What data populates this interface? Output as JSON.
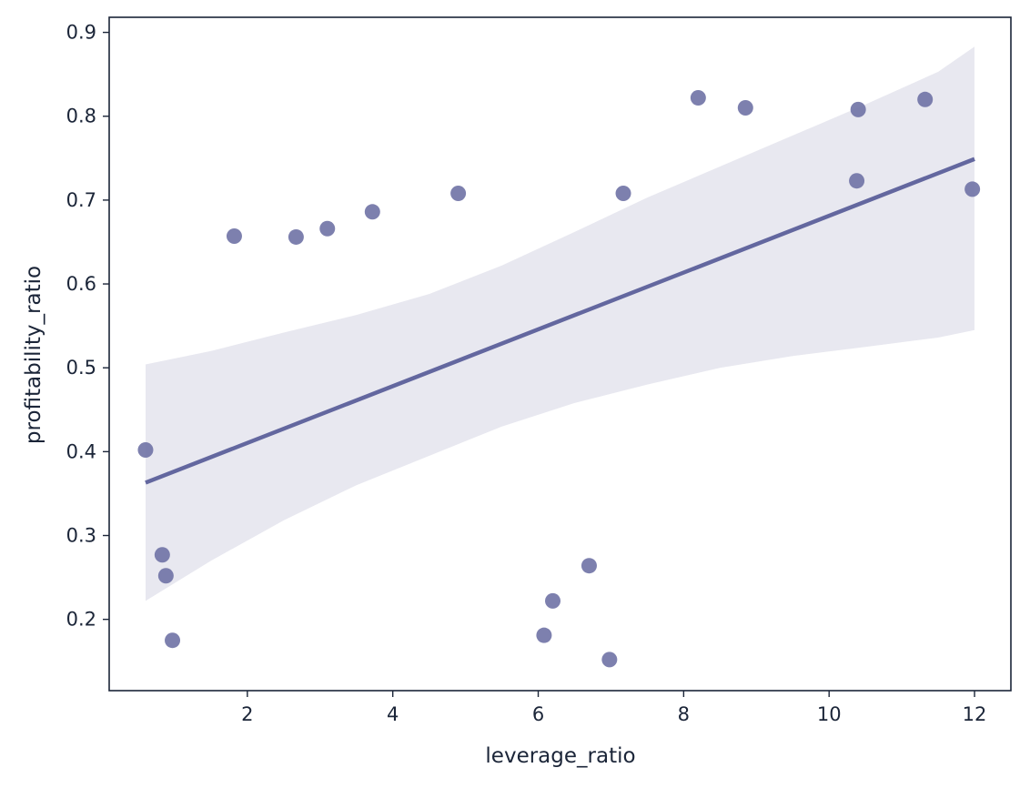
{
  "chart_data": {
    "type": "scatter",
    "title": "",
    "xlabel": "leverage_ratio",
    "ylabel": "profitability_ratio",
    "xlim": [
      0.1,
      12.5
    ],
    "ylim": [
      0.115,
      0.918
    ],
    "xticks": [
      2,
      4,
      6,
      8,
      10,
      12
    ],
    "yticks": [
      0.2,
      0.3,
      0.4,
      0.5,
      0.6,
      0.7,
      0.8,
      0.9
    ],
    "grid": false,
    "legend": "none",
    "colors": {
      "points": "#6b6ea3",
      "regression_line": "#63679f",
      "confidence_band": "#e8e8f0",
      "axes": "#1b2538"
    },
    "points": [
      {
        "x": 0.6,
        "y": 0.402
      },
      {
        "x": 0.83,
        "y": 0.277
      },
      {
        "x": 0.88,
        "y": 0.252
      },
      {
        "x": 0.97,
        "y": 0.175
      },
      {
        "x": 1.82,
        "y": 0.657
      },
      {
        "x": 2.67,
        "y": 0.656
      },
      {
        "x": 3.1,
        "y": 0.666
      },
      {
        "x": 3.72,
        "y": 0.686
      },
      {
        "x": 4.9,
        "y": 0.708
      },
      {
        "x": 6.08,
        "y": 0.181
      },
      {
        "x": 6.2,
        "y": 0.222
      },
      {
        "x": 6.7,
        "y": 0.264
      },
      {
        "x": 6.98,
        "y": 0.152
      },
      {
        "x": 7.17,
        "y": 0.708
      },
      {
        "x": 8.2,
        "y": 0.822
      },
      {
        "x": 8.85,
        "y": 0.81
      },
      {
        "x": 10.38,
        "y": 0.723
      },
      {
        "x": 10.4,
        "y": 0.808
      },
      {
        "x": 11.32,
        "y": 0.82
      },
      {
        "x": 11.97,
        "y": 0.713
      }
    ],
    "regression": {
      "x0": 0.6,
      "y0": 0.363,
      "x1": 12.0,
      "y1": 0.749
    },
    "confidence_band": {
      "x": [
        0.6,
        1.5,
        2.5,
        3.5,
        4.5,
        5.5,
        6.5,
        7.5,
        8.5,
        9.5,
        10.5,
        11.5,
        12.0
      ],
      "upper": [
        0.504,
        0.52,
        0.542,
        0.563,
        0.588,
        0.622,
        0.662,
        0.703,
        0.74,
        0.777,
        0.814,
        0.853,
        0.883
      ],
      "lower": [
        0.222,
        0.27,
        0.318,
        0.36,
        0.395,
        0.43,
        0.458,
        0.48,
        0.5,
        0.514,
        0.525,
        0.536,
        0.545
      ]
    }
  }
}
